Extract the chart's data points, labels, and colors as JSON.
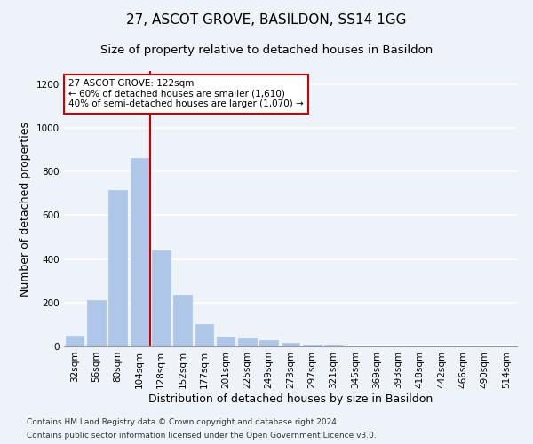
{
  "title": "27, ASCOT GROVE, BASILDON, SS14 1GG",
  "subtitle": "Size of property relative to detached houses in Basildon",
  "xlabel": "Distribution of detached houses by size in Basildon",
  "ylabel": "Number of detached properties",
  "bar_labels": [
    "32sqm",
    "56sqm",
    "80sqm",
    "104sqm",
    "128sqm",
    "152sqm",
    "177sqm",
    "201sqm",
    "225sqm",
    "249sqm",
    "273sqm",
    "297sqm",
    "321sqm",
    "345sqm",
    "369sqm",
    "393sqm",
    "418sqm",
    "442sqm",
    "466sqm",
    "490sqm",
    "514sqm"
  ],
  "bar_values": [
    47,
    210,
    715,
    860,
    440,
    235,
    100,
    43,
    37,
    27,
    18,
    10,
    5,
    0,
    0,
    0,
    0,
    0,
    0,
    0,
    0
  ],
  "bar_color": "#aec6e8",
  "bar_edgecolor": "#aec6e8",
  "vline_index": 4,
  "vline_color": "#cc0000",
  "annotation_text": "27 ASCOT GROVE: 122sqm\n← 60% of detached houses are smaller (1,610)\n40% of semi-detached houses are larger (1,070) →",
  "annotation_box_edgecolor": "#cc0000",
  "annotation_box_facecolor": "#ffffff",
  "ylim": [
    0,
    1260
  ],
  "yticks": [
    0,
    200,
    400,
    600,
    800,
    1000,
    1200
  ],
  "footer_line1": "Contains HM Land Registry data © Crown copyright and database right 2024.",
  "footer_line2": "Contains public sector information licensed under the Open Government Licence v3.0.",
  "background_color": "#eef2f9",
  "axes_background": "#eef2f9",
  "grid_color": "#ffffff",
  "title_fontsize": 11,
  "subtitle_fontsize": 9.5,
  "xlabel_fontsize": 9,
  "ylabel_fontsize": 9,
  "tick_fontsize": 7.5,
  "footer_fontsize": 6.5
}
